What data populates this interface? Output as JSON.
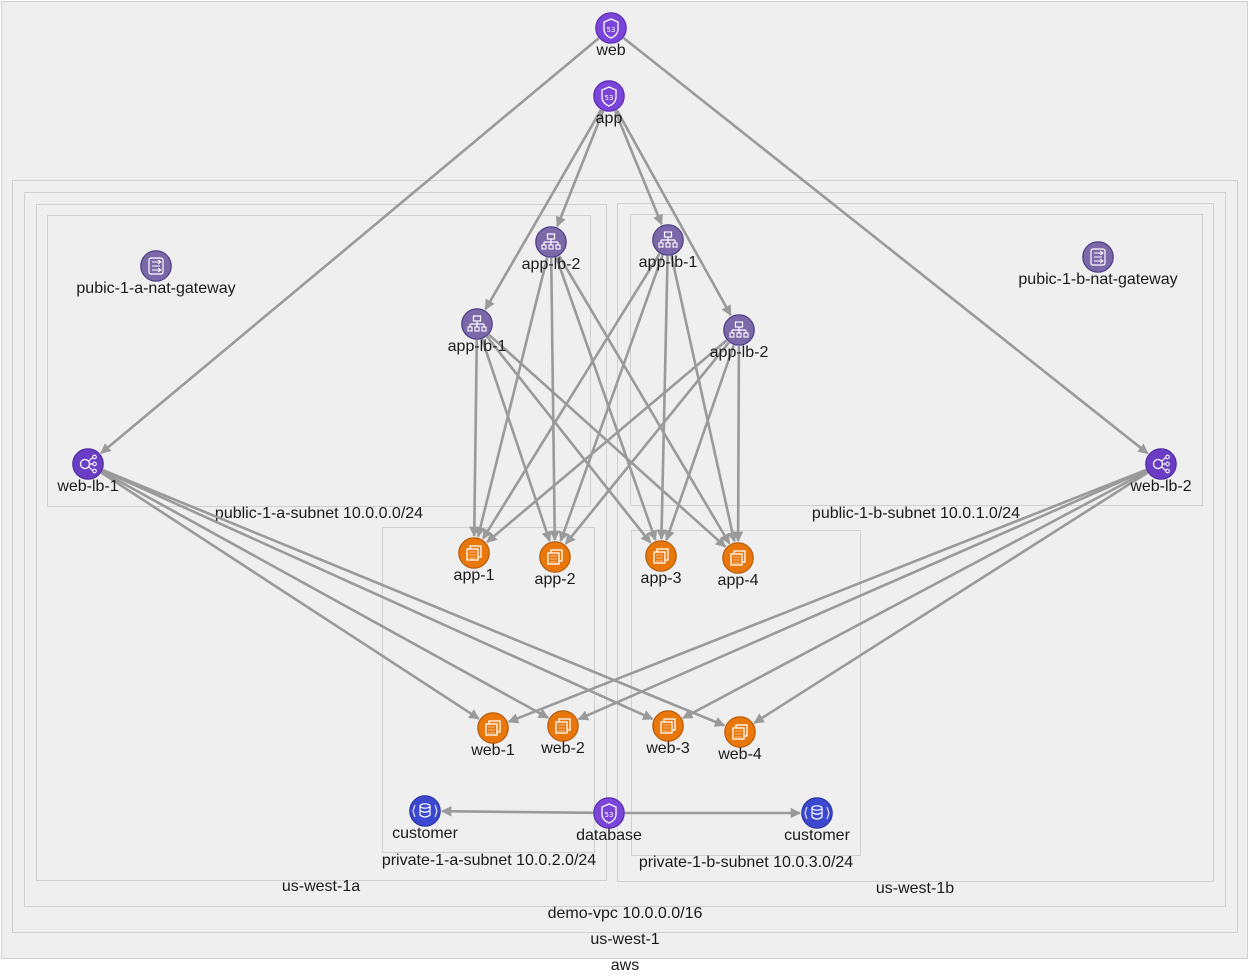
{
  "colors": {
    "route53": "#7a45d8",
    "loadbalancer": "#7a68a8",
    "elb": "#6a3ec4",
    "ec2": "#e8770c",
    "rds": "#3c48d0",
    "edge": "#9a9a9a"
  },
  "groups": {
    "aws": "aws",
    "region": "us-west-1",
    "vpc": "demo-vpc 10.0.0.0/16",
    "az_a": "us-west-1a",
    "az_b": "us-west-1b",
    "public_a": "public-1-a-subnet 10.0.0.0/24",
    "public_b": "public-1-b-subnet 10.0.1.0/24",
    "private_a": "private-1-a-subnet 10.0.2.0/24",
    "private_b": "private-1-b-subnet 10.0.3.0/24"
  },
  "nodes": [
    {
      "id": "web_dns",
      "label": "web",
      "kind": "route53-icon"
    },
    {
      "id": "app_dns",
      "label": "app",
      "kind": "route53-icon"
    },
    {
      "id": "nat_a",
      "label": "pubic-1-a-nat-gateway",
      "kind": "nat-gateway-icon"
    },
    {
      "id": "nat_b",
      "label": "pubic-1-b-nat-gateway",
      "kind": "nat-gateway-icon"
    },
    {
      "id": "alb_a2",
      "label": "app-lb-2",
      "kind": "alb-icon"
    },
    {
      "id": "alb_a1",
      "label": "app-lb-1",
      "kind": "alb-icon"
    },
    {
      "id": "alb_b1",
      "label": "app-lb-1",
      "kind": "alb-icon"
    },
    {
      "id": "alb_b2",
      "label": "app-lb-2",
      "kind": "alb-icon"
    },
    {
      "id": "weblb1",
      "label": "web-lb-1",
      "kind": "elb-icon"
    },
    {
      "id": "weblb2",
      "label": "web-lb-2",
      "kind": "elb-icon"
    },
    {
      "id": "app1",
      "label": "app-1",
      "kind": "ec2-icon"
    },
    {
      "id": "app2",
      "label": "app-2",
      "kind": "ec2-icon"
    },
    {
      "id": "app3",
      "label": "app-3",
      "kind": "ec2-icon"
    },
    {
      "id": "app4",
      "label": "app-4",
      "kind": "ec2-icon"
    },
    {
      "id": "web1",
      "label": "web-1",
      "kind": "ec2-icon"
    },
    {
      "id": "web2",
      "label": "web-2",
      "kind": "ec2-icon"
    },
    {
      "id": "web3",
      "label": "web-3",
      "kind": "ec2-icon"
    },
    {
      "id": "web4",
      "label": "web-4",
      "kind": "ec2-icon"
    },
    {
      "id": "db_dns",
      "label": "database",
      "kind": "route53-icon"
    },
    {
      "id": "cust_a",
      "label": "customer",
      "kind": "rds-icon"
    },
    {
      "id": "cust_b",
      "label": "customer",
      "kind": "rds-icon"
    }
  ],
  "edges": [
    [
      "web_dns",
      "weblb1"
    ],
    [
      "web_dns",
      "weblb2"
    ],
    [
      "app_dns",
      "alb_a2"
    ],
    [
      "app_dns",
      "alb_a1"
    ],
    [
      "app_dns",
      "alb_b1"
    ],
    [
      "app_dns",
      "alb_b2"
    ],
    [
      "alb_a2",
      "app1"
    ],
    [
      "alb_a2",
      "app2"
    ],
    [
      "alb_a2",
      "app3"
    ],
    [
      "alb_a2",
      "app4"
    ],
    [
      "alb_a1",
      "app1"
    ],
    [
      "alb_a1",
      "app2"
    ],
    [
      "alb_a1",
      "app3"
    ],
    [
      "alb_a1",
      "app4"
    ],
    [
      "alb_b1",
      "app1"
    ],
    [
      "alb_b1",
      "app2"
    ],
    [
      "alb_b1",
      "app3"
    ],
    [
      "alb_b1",
      "app4"
    ],
    [
      "alb_b2",
      "app1"
    ],
    [
      "alb_b2",
      "app2"
    ],
    [
      "alb_b2",
      "app3"
    ],
    [
      "alb_b2",
      "app4"
    ],
    [
      "weblb1",
      "web1"
    ],
    [
      "weblb1",
      "web2"
    ],
    [
      "weblb1",
      "web3"
    ],
    [
      "weblb1",
      "web4"
    ],
    [
      "weblb2",
      "web1"
    ],
    [
      "weblb2",
      "web2"
    ],
    [
      "weblb2",
      "web3"
    ],
    [
      "weblb2",
      "web4"
    ],
    [
      "db_dns",
      "cust_a"
    ],
    [
      "db_dns",
      "cust_b"
    ]
  ]
}
